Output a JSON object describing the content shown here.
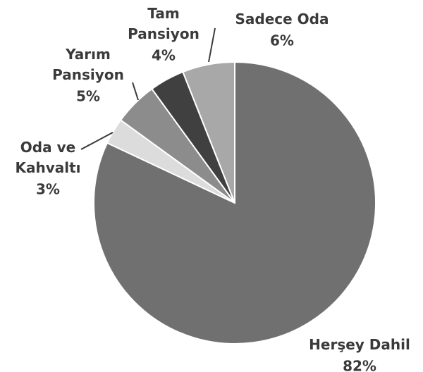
{
  "chart_data": {
    "type": "pie",
    "categories": [
      "Herşey Dahil",
      "Oda ve Kahvaltı",
      "Yarım Pansiyon",
      "Tam Pansiyon",
      "Sadece Oda"
    ],
    "values": [
      82,
      3,
      5,
      4,
      6
    ],
    "value_labels": [
      "82%",
      "3%",
      "5%",
      "4%",
      "6%"
    ],
    "colors": [
      "#707070",
      "#dcdcdc",
      "#8c8c8c",
      "#404040",
      "#a8a8a8"
    ]
  }
}
